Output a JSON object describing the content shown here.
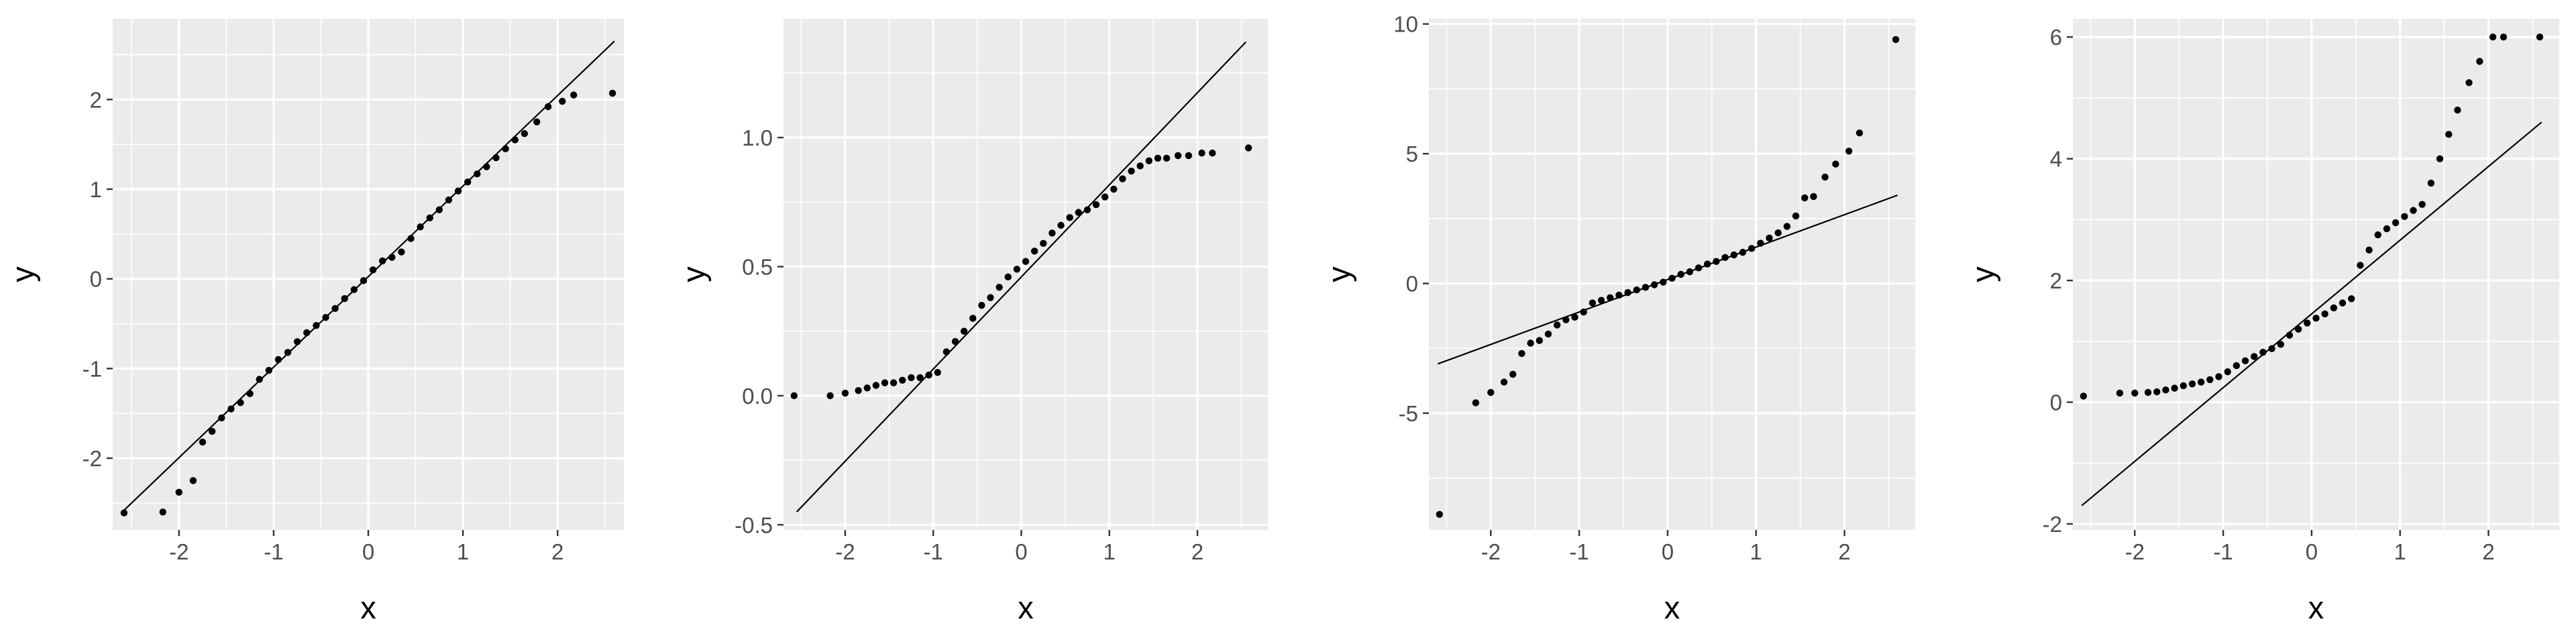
{
  "chart_data": [
    {
      "type": "scatter",
      "xlabel": "x",
      "ylabel": "y",
      "xlim": [
        -2.7,
        2.7
      ],
      "ylim": [
        -2.8,
        2.9
      ],
      "xticks": [
        -2,
        -1,
        0,
        1,
        2
      ],
      "yticks": [
        -2,
        -1,
        0,
        1,
        2
      ],
      "grid": true,
      "reference_line": {
        "x": [
          -2.6,
          2.6
        ],
        "y": [
          -2.6,
          2.65
        ]
      },
      "series": [
        {
          "x": [
            -2.58,
            -2.17,
            -2.0,
            -1.85,
            -1.75,
            -1.65,
            -1.55,
            -1.45,
            -1.35,
            -1.25,
            -1.15,
            -1.05,
            -0.95,
            -0.85,
            -0.75,
            -0.65,
            -0.55,
            -0.45,
            -0.35,
            -0.25,
            -0.15,
            -0.05,
            0.05,
            0.15,
            0.25,
            0.35,
            0.45,
            0.55,
            0.65,
            0.75,
            0.85,
            0.95,
            1.05,
            1.15,
            1.25,
            1.35,
            1.45,
            1.55,
            1.65,
            1.78,
            1.9,
            2.05,
            2.17,
            2.58
          ],
          "y": [
            -2.61,
            -2.6,
            -2.38,
            -2.25,
            -1.82,
            -1.7,
            -1.55,
            -1.45,
            -1.38,
            -1.28,
            -1.12,
            -1.02,
            -0.9,
            -0.82,
            -0.7,
            -0.6,
            -0.52,
            -0.43,
            -0.33,
            -0.22,
            -0.12,
            -0.02,
            0.1,
            0.2,
            0.24,
            0.3,
            0.45,
            0.58,
            0.68,
            0.77,
            0.88,
            0.98,
            1.08,
            1.17,
            1.25,
            1.35,
            1.45,
            1.55,
            1.62,
            1.75,
            1.92,
            1.98,
            2.05,
            2.07
          ]
        }
      ]
    },
    {
      "type": "scatter",
      "xlabel": "x",
      "ylabel": "y",
      "xlim": [
        -2.7,
        2.8
      ],
      "ylim": [
        -0.52,
        1.46
      ],
      "xticks": [
        -2,
        -1,
        0,
        1,
        2
      ],
      "yticks": [
        -0.5,
        0.0,
        0.5,
        1.0
      ],
      "ytick_labels": [
        "-0.5",
        "0.0",
        "0.5",
        "1.0"
      ],
      "grid": true,
      "reference_line": {
        "x": [
          -2.55,
          2.55
        ],
        "y": [
          -0.45,
          1.37
        ]
      },
      "series": [
        {
          "x": [
            -2.58,
            -2.17,
            -2.0,
            -1.85,
            -1.75,
            -1.65,
            -1.55,
            -1.45,
            -1.35,
            -1.25,
            -1.15,
            -1.05,
            -0.95,
            -0.85,
            -0.75,
            -0.65,
            -0.55,
            -0.45,
            -0.35,
            -0.25,
            -0.15,
            -0.05,
            0.05,
            0.15,
            0.25,
            0.35,
            0.45,
            0.55,
            0.65,
            0.75,
            0.85,
            0.95,
            1.05,
            1.15,
            1.25,
            1.35,
            1.45,
            1.55,
            1.65,
            1.78,
            1.9,
            2.05,
            2.17,
            2.58
          ],
          "y": [
            0.0,
            0.0,
            0.01,
            0.02,
            0.03,
            0.04,
            0.05,
            0.05,
            0.06,
            0.07,
            0.07,
            0.08,
            0.09,
            0.17,
            0.21,
            0.25,
            0.3,
            0.35,
            0.38,
            0.42,
            0.46,
            0.49,
            0.52,
            0.56,
            0.59,
            0.63,
            0.66,
            0.69,
            0.71,
            0.72,
            0.74,
            0.77,
            0.8,
            0.84,
            0.87,
            0.89,
            0.91,
            0.92,
            0.92,
            0.93,
            0.93,
            0.94,
            0.94,
            0.96
          ]
        }
      ]
    },
    {
      "type": "scatter",
      "xlabel": "x",
      "ylabel": "y",
      "xlim": [
        -2.7,
        2.8
      ],
      "ylim": [
        -9.5,
        10.2
      ],
      "xticks": [
        -2,
        -1,
        0,
        1,
        2
      ],
      "yticks": [
        -5,
        0,
        5,
        10
      ],
      "grid": true,
      "reference_line": {
        "x": [
          -2.6,
          2.6
        ],
        "y": [
          -3.1,
          3.4
        ]
      },
      "series": [
        {
          "x": [
            -2.58,
            -2.17,
            -2.0,
            -1.85,
            -1.75,
            -1.65,
            -1.55,
            -1.45,
            -1.35,
            -1.25,
            -1.15,
            -1.05,
            -0.95,
            -0.85,
            -0.75,
            -0.65,
            -0.55,
            -0.45,
            -0.35,
            -0.25,
            -0.15,
            -0.05,
            0.05,
            0.15,
            0.25,
            0.35,
            0.45,
            0.55,
            0.65,
            0.75,
            0.85,
            0.95,
            1.05,
            1.15,
            1.25,
            1.35,
            1.45,
            1.55,
            1.65,
            1.78,
            1.9,
            2.05,
            2.17,
            2.58
          ],
          "y": [
            -8.9,
            -4.6,
            -4.2,
            -3.8,
            -3.5,
            -2.7,
            -2.3,
            -2.2,
            -1.95,
            -1.6,
            -1.4,
            -1.3,
            -1.1,
            -0.75,
            -0.65,
            -0.55,
            -0.45,
            -0.35,
            -0.25,
            -0.15,
            -0.05,
            0.05,
            0.2,
            0.35,
            0.45,
            0.6,
            0.75,
            0.85,
            1.0,
            1.1,
            1.2,
            1.35,
            1.55,
            1.75,
            1.95,
            2.2,
            2.6,
            3.3,
            3.35,
            4.1,
            4.6,
            5.1,
            5.8,
            9.4
          ]
        }
      ]
    },
    {
      "type": "scatter",
      "xlabel": "x",
      "ylabel": "y",
      "xlim": [
        -2.7,
        2.8
      ],
      "ylim": [
        -2.1,
        6.3
      ],
      "xticks": [
        -2,
        -1,
        0,
        1,
        2
      ],
      "yticks": [
        -2,
        0,
        2,
        4,
        6
      ],
      "grid": true,
      "reference_line": {
        "x": [
          -2.6,
          2.6
        ],
        "y": [
          -1.7,
          4.6
        ]
      },
      "series": [
        {
          "x": [
            -2.58,
            -2.17,
            -2.0,
            -1.85,
            -1.75,
            -1.65,
            -1.55,
            -1.45,
            -1.35,
            -1.25,
            -1.15,
            -1.05,
            -0.95,
            -0.85,
            -0.75,
            -0.65,
            -0.55,
            -0.45,
            -0.35,
            -0.25,
            -0.15,
            -0.05,
            0.05,
            0.15,
            0.25,
            0.35,
            0.45,
            0.55,
            0.65,
            0.75,
            0.85,
            0.95,
            1.05,
            1.15,
            1.25,
            1.35,
            1.45,
            1.55,
            1.65,
            1.78,
            1.9,
            2.05,
            2.17,
            2.58
          ],
          "y": [
            0.1,
            0.15,
            0.15,
            0.16,
            0.17,
            0.2,
            0.23,
            0.27,
            0.3,
            0.33,
            0.37,
            0.42,
            0.5,
            0.6,
            0.68,
            0.75,
            0.82,
            0.88,
            0.95,
            1.1,
            1.2,
            1.3,
            1.38,
            1.45,
            1.55,
            1.63,
            1.7,
            2.25,
            2.5,
            2.75,
            2.85,
            2.95,
            3.05,
            3.15,
            3.25,
            3.6,
            4.0,
            4.4,
            4.8,
            5.25,
            5.6,
            6.0,
            6.0,
            6.0
          ]
        }
      ]
    }
  ]
}
